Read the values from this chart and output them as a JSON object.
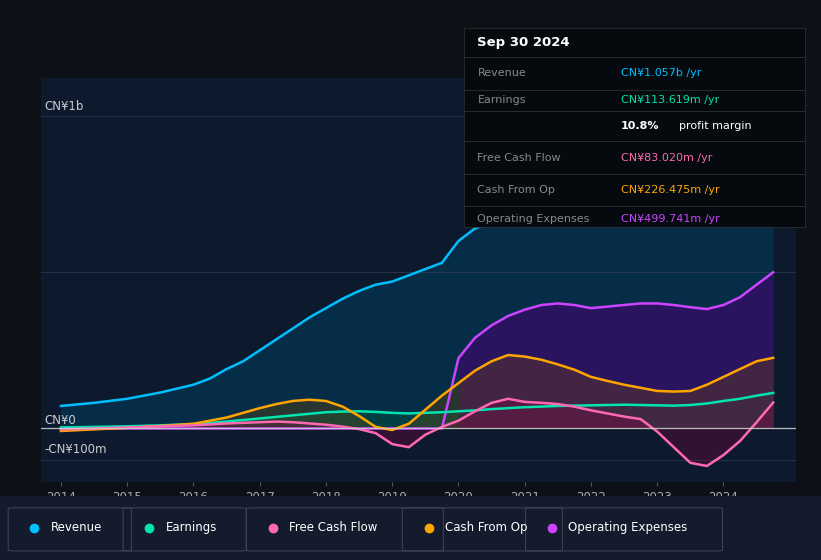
{
  "bg_color": "#0d1117",
  "chart_bg": "#0d1a2e",
  "revenue_color": "#00bfff",
  "earnings_color": "#00e5b0",
  "free_cash_flow_color": "#ff69b4",
  "cash_from_op_color": "#ffa500",
  "operating_expenses_color": "#cc44ff",
  "ylabel_top": "CN¥1b",
  "ylabel_zero": "CN¥0",
  "ylabel_neg": "-CN¥100m",
  "info_box": {
    "title": "Sep 30 2024",
    "rows": [
      {
        "label": "Revenue",
        "value": "CN¥1.057b /yr",
        "value_color": "#00bfff"
      },
      {
        "label": "Earnings",
        "value": "CN¥113.619m /yr",
        "value_color": "#00e5b0"
      },
      {
        "label": "",
        "value": "10.8%",
        "value2": " profit margin",
        "value_color": "#ffffff"
      },
      {
        "label": "Free Cash Flow",
        "value": "CN¥83.020m /yr",
        "value_color": "#ff69b4"
      },
      {
        "label": "Cash From Op",
        "value": "CN¥226.475m /yr",
        "value_color": "#ffa500"
      },
      {
        "label": "Operating Expenses",
        "value": "CN¥499.741m /yr",
        "value_color": "#cc44ff"
      }
    ]
  }
}
